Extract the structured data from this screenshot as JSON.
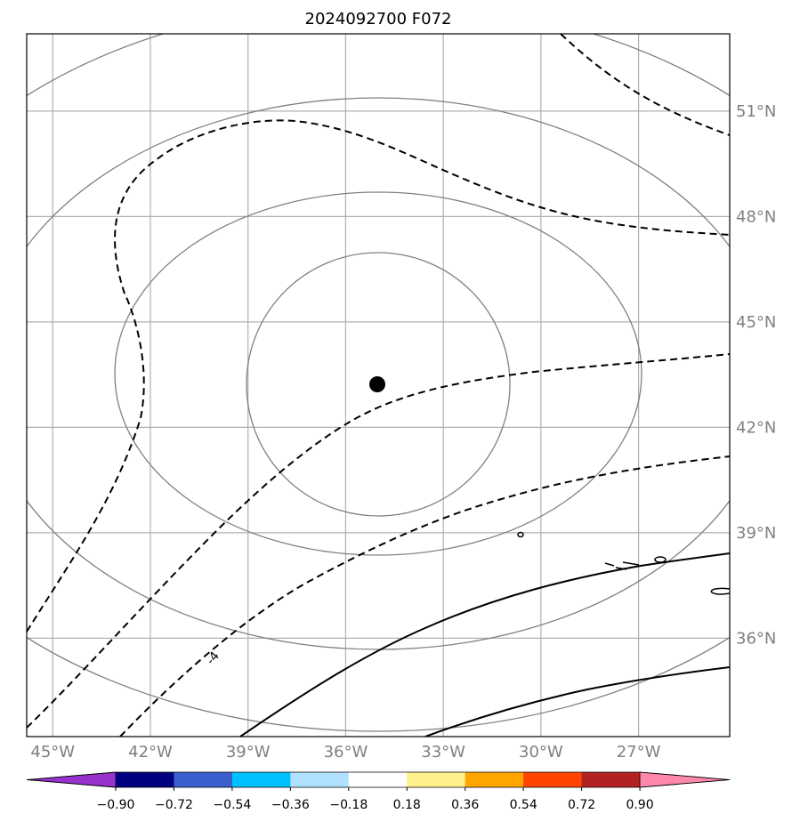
{
  "title": "2024092700 F072",
  "map": {
    "lon_range": [
      -45.8,
      -24.2
    ],
    "lat_range": [
      33.2,
      53.2
    ],
    "lon_ticks": [
      {
        "value": -45,
        "label": "45°W"
      },
      {
        "value": -42,
        "label": "42°W"
      },
      {
        "value": -39,
        "label": "39°W"
      },
      {
        "value": -36,
        "label": "36°W"
      },
      {
        "value": -33,
        "label": "33°W"
      },
      {
        "value": -30,
        "label": "30°W"
      },
      {
        "value": -27,
        "label": "27°W"
      }
    ],
    "lat_ticks": [
      {
        "value": 51,
        "label": "51°N"
      },
      {
        "value": 48,
        "label": "48°N"
      },
      {
        "value": 45,
        "label": "45°N"
      },
      {
        "value": 42,
        "label": "42°N"
      },
      {
        "value": 39,
        "label": "39°N"
      },
      {
        "value": 36,
        "label": "36°N"
      }
    ],
    "center_point": {
      "lon": -35.2,
      "lat": 43.7
    },
    "range_ring_color": "#808080",
    "gridline_color": "#b0b0b0",
    "contour_color": "#000000",
    "contour_label": "-4"
  },
  "colorbar": {
    "colors": [
      "#9932cc",
      "#000080",
      "#3a5fcd",
      "#00bfff",
      "#b0e2ff",
      "#ffffff",
      "#fff08b",
      "#ffa500",
      "#ff4500",
      "#b22222",
      "#ff88aa"
    ],
    "tick_labels": [
      "−0.90",
      "−0.72",
      "−0.54",
      "−0.36",
      "−0.18",
      "0.18",
      "0.36",
      "0.54",
      "0.72",
      "0.90"
    ]
  }
}
